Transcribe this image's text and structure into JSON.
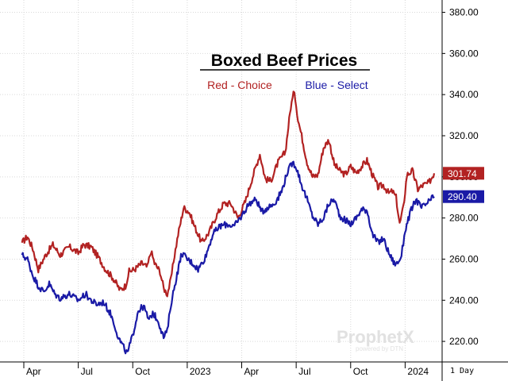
{
  "chart_data": {
    "type": "line",
    "title": "Boxed Beef Prices",
    "legend": [
      {
        "label": "Red - Choice",
        "color": "#b22222"
      },
      {
        "label": "Blue - Select",
        "color": "#1a1aa6"
      }
    ],
    "y_axis": {
      "min": 210,
      "max": 386,
      "ticks": [
        220,
        240,
        260,
        280,
        300,
        320,
        340,
        360,
        380
      ],
      "tick_labels": [
        "220.00",
        "240.00",
        "260.00",
        "280.00",
        "300.00",
        "320.00",
        "340.00",
        "360.00",
        "380.00"
      ],
      "side": "right"
    },
    "x_axis": {
      "ticks": [
        {
          "label": "Apr",
          "t": 0
        },
        {
          "label": "Jul",
          "t": 3
        },
        {
          "label": "Oct",
          "t": 6
        },
        {
          "label": "2023",
          "t": 9
        },
        {
          "label": "Apr",
          "t": 12
        },
        {
          "label": "Jul",
          "t": 15
        },
        {
          "label": "Oct",
          "t": 18
        },
        {
          "label": "2024",
          "t": 21
        }
      ],
      "t_min": -0.1,
      "t_max": 22.6
    },
    "series": [
      {
        "name": "Choice",
        "color": "#b22222",
        "last_value": "301.74",
        "points": [
          [
            -0.1,
            268
          ],
          [
            0.2,
            271
          ],
          [
            0.5,
            265
          ],
          [
            0.8,
            255
          ],
          [
            1.2,
            262
          ],
          [
            1.6,
            267
          ],
          [
            2.0,
            262
          ],
          [
            2.5,
            266
          ],
          [
            3.0,
            263
          ],
          [
            3.3,
            267
          ],
          [
            3.7,
            266
          ],
          [
            4.1,
            261
          ],
          [
            4.5,
            255
          ],
          [
            4.9,
            251
          ],
          [
            5.3,
            245
          ],
          [
            5.6,
            247
          ],
          [
            5.8,
            254
          ],
          [
            6.1,
            255
          ],
          [
            6.5,
            258
          ],
          [
            6.8,
            256
          ],
          [
            7.0,
            264
          ],
          [
            7.2,
            258
          ],
          [
            7.5,
            254
          ],
          [
            7.7,
            246
          ],
          [
            7.9,
            243
          ],
          [
            8.1,
            250
          ],
          [
            8.3,
            262
          ],
          [
            8.5,
            272
          ],
          [
            8.8,
            285
          ],
          [
            9.1,
            283
          ],
          [
            9.4,
            276
          ],
          [
            9.8,
            268
          ],
          [
            10.2,
            273
          ],
          [
            10.6,
            281
          ],
          [
            11.0,
            287
          ],
          [
            11.4,
            287
          ],
          [
            11.8,
            280
          ],
          [
            12.2,
            288
          ],
          [
            12.6,
            300
          ],
          [
            13.0,
            311
          ],
          [
            13.3,
            299
          ],
          [
            13.6,
            298
          ],
          [
            14.0,
            307
          ],
          [
            14.4,
            312
          ],
          [
            14.7,
            334
          ],
          [
            14.9,
            342
          ],
          [
            15.1,
            328
          ],
          [
            15.3,
            320
          ],
          [
            15.6,
            307
          ],
          [
            15.9,
            300
          ],
          [
            16.2,
            301
          ],
          [
            16.5,
            314
          ],
          [
            16.8,
            318
          ],
          [
            17.1,
            306
          ],
          [
            17.4,
            303
          ],
          [
            17.7,
            301
          ],
          [
            18.0,
            305
          ],
          [
            18.3,
            302
          ],
          [
            18.6,
            305
          ],
          [
            18.9,
            308
          ],
          [
            19.2,
            301
          ],
          [
            19.5,
            295
          ],
          [
            19.8,
            296
          ],
          [
            20.1,
            292
          ],
          [
            20.3,
            293
          ],
          [
            20.5,
            290
          ],
          [
            20.7,
            277
          ],
          [
            20.9,
            285
          ],
          [
            21.1,
            301
          ],
          [
            21.4,
            303
          ],
          [
            21.7,
            294
          ],
          [
            22.0,
            296
          ],
          [
            22.3,
            297
          ],
          [
            22.6,
            301.74
          ]
        ]
      },
      {
        "name": "Select",
        "color": "#1a1aa6",
        "last_value": "290.40",
        "points": [
          [
            -0.1,
            262
          ],
          [
            0.2,
            260
          ],
          [
            0.5,
            252
          ],
          [
            0.8,
            247
          ],
          [
            1.1,
            244
          ],
          [
            1.4,
            248
          ],
          [
            1.7,
            243
          ],
          [
            2.0,
            241
          ],
          [
            2.5,
            243
          ],
          [
            3.0,
            240
          ],
          [
            3.4,
            243
          ],
          [
            3.7,
            240
          ],
          [
            4.0,
            238
          ],
          [
            4.4,
            239
          ],
          [
            4.8,
            233
          ],
          [
            5.0,
            228
          ],
          [
            5.2,
            222
          ],
          [
            5.5,
            217
          ],
          [
            5.7,
            214
          ],
          [
            6.0,
            223
          ],
          [
            6.3,
            235
          ],
          [
            6.6,
            237
          ],
          [
            6.9,
            230
          ],
          [
            7.1,
            234
          ],
          [
            7.4,
            230
          ],
          [
            7.7,
            222
          ],
          [
            7.9,
            225
          ],
          [
            8.1,
            238
          ],
          [
            8.4,
            251
          ],
          [
            8.7,
            263
          ],
          [
            9.0,
            260
          ],
          [
            9.3,
            258
          ],
          [
            9.6,
            255
          ],
          [
            10.0,
            261
          ],
          [
            10.4,
            272
          ],
          [
            10.8,
            276
          ],
          [
            11.2,
            277
          ],
          [
            11.6,
            276
          ],
          [
            12.0,
            281
          ],
          [
            12.4,
            287
          ],
          [
            12.8,
            289
          ],
          [
            13.1,
            283
          ],
          [
            13.4,
            285
          ],
          [
            13.8,
            287
          ],
          [
            14.2,
            293
          ],
          [
            14.5,
            302
          ],
          [
            14.8,
            307
          ],
          [
            15.0,
            305
          ],
          [
            15.3,
            296
          ],
          [
            15.6,
            289
          ],
          [
            15.9,
            281
          ],
          [
            16.2,
            277
          ],
          [
            16.5,
            280
          ],
          [
            16.8,
            287
          ],
          [
            17.1,
            289
          ],
          [
            17.4,
            281
          ],
          [
            17.7,
            279
          ],
          [
            18.0,
            277
          ],
          [
            18.3,
            280
          ],
          [
            18.6,
            284
          ],
          [
            18.9,
            284
          ],
          [
            19.2,
            272
          ],
          [
            19.5,
            268
          ],
          [
            19.8,
            270
          ],
          [
            20.1,
            263
          ],
          [
            20.4,
            258
          ],
          [
            20.6,
            258
          ],
          [
            20.8,
            262
          ],
          [
            21.0,
            274
          ],
          [
            21.3,
            283
          ],
          [
            21.6,
            289
          ],
          [
            21.9,
            285
          ],
          [
            22.2,
            287
          ],
          [
            22.6,
            290.4
          ]
        ]
      }
    ]
  },
  "watermark": {
    "brand": "ProphetX",
    "tagline": "powered by DTN"
  },
  "interval_label": "1 Day"
}
